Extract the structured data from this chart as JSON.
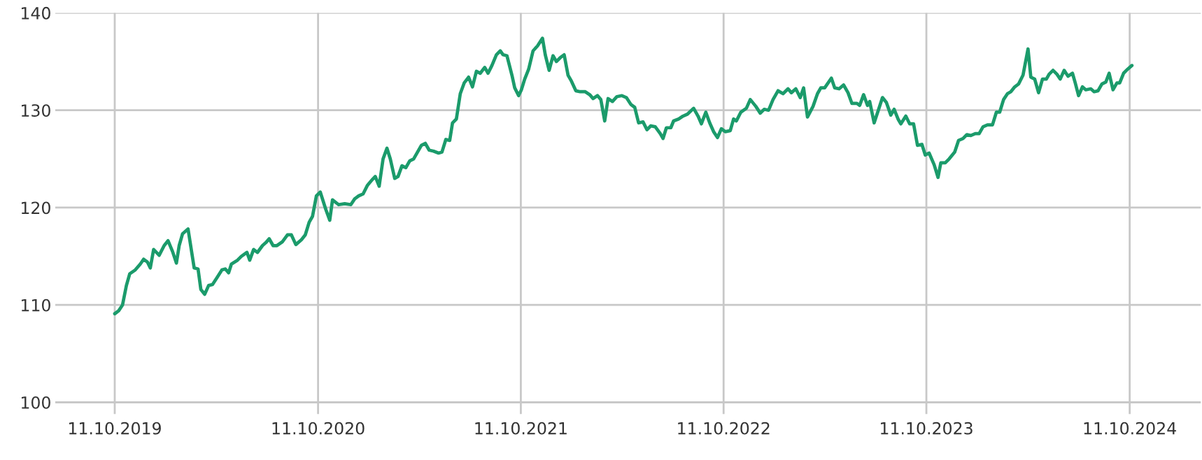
{
  "chart_data": {
    "type": "line",
    "x": [
      "2019-10-11",
      "2019-10-18",
      "2019-10-25",
      "2019-11-01",
      "2019-11-07",
      "2019-11-17",
      "2019-11-26",
      "2019-12-02",
      "2019-12-09",
      "2019-12-14",
      "2019-12-20",
      "2019-12-30",
      "2020-01-08",
      "2020-01-15",
      "2020-01-23",
      "2020-01-30",
      "2020-02-04",
      "2020-02-10",
      "2020-02-20",
      "2020-03-02",
      "2020-03-09",
      "2020-03-14",
      "2020-03-21",
      "2020-03-28",
      "2020-04-04",
      "2020-04-12",
      "2020-04-21",
      "2020-04-27",
      "2020-05-03",
      "2020-05-08",
      "2020-05-19",
      "2020-05-26",
      "2020-06-05",
      "2020-06-10",
      "2020-06-17",
      "2020-06-24",
      "2020-07-03",
      "2020-07-09",
      "2020-07-15",
      "2020-07-22",
      "2020-07-29",
      "2020-08-08",
      "2020-08-17",
      "2020-08-24",
      "2020-09-01",
      "2020-09-11",
      "2020-09-18",
      "2020-09-25",
      "2020-10-01",
      "2020-10-08",
      "2020-10-15",
      "2020-10-25",
      "2020-11-01",
      "2020-11-06",
      "2020-11-17",
      "2020-11-28",
      "2020-12-09",
      "2020-12-16",
      "2020-12-23",
      "2020-12-31",
      "2021-01-08",
      "2021-01-17",
      "2021-01-22",
      "2021-01-29",
      "2021-02-05",
      "2021-02-12",
      "2021-02-18",
      "2021-02-26",
      "2021-03-04",
      "2021-03-11",
      "2021-03-18",
      "2021-03-25",
      "2021-04-01",
      "2021-04-08",
      "2021-04-15",
      "2021-04-22",
      "2021-04-29",
      "2021-05-07",
      "2021-05-16",
      "2021-05-22",
      "2021-05-29",
      "2021-06-05",
      "2021-06-10",
      "2021-06-17",
      "2021-06-24",
      "2021-07-01",
      "2021-07-09",
      "2021-07-16",
      "2021-07-23",
      "2021-07-30",
      "2021-08-07",
      "2021-08-13",
      "2021-08-20",
      "2021-08-28",
      "2021-09-04",
      "2021-09-09",
      "2021-09-16",
      "2021-09-25",
      "2021-09-30",
      "2021-10-07",
      "2021-10-12",
      "2021-10-18",
      "2021-10-25",
      "2021-11-02",
      "2021-11-10",
      "2021-11-19",
      "2021-11-24",
      "2021-12-01",
      "2021-12-08",
      "2021-12-14",
      "2021-12-21",
      "2021-12-28",
      "2022-01-04",
      "2022-01-10",
      "2022-01-18",
      "2022-01-26",
      "2022-02-04",
      "2022-02-12",
      "2022-02-18",
      "2022-02-26",
      "2022-03-04",
      "2022-03-11",
      "2022-03-17",
      "2022-03-25",
      "2022-04-02",
      "2022-04-11",
      "2022-04-19",
      "2022-04-27",
      "2022-05-04",
      "2022-05-11",
      "2022-05-19",
      "2022-05-26",
      "2022-06-02",
      "2022-06-10",
      "2022-06-19",
      "2022-06-24",
      "2022-06-30",
      "2022-07-08",
      "2022-07-13",
      "2022-07-22",
      "2022-07-30",
      "2022-08-07",
      "2022-08-18",
      "2022-08-26",
      "2022-09-01",
      "2022-09-09",
      "2022-09-16",
      "2022-09-23",
      "2022-09-30",
      "2022-10-07",
      "2022-10-14",
      "2022-10-23",
      "2022-10-29",
      "2022-11-03",
      "2022-11-11",
      "2022-11-21",
      "2022-11-28",
      "2022-12-08",
      "2022-12-16",
      "2022-12-23",
      "2022-12-31",
      "2023-01-08",
      "2023-01-17",
      "2023-01-26",
      "2023-02-04",
      "2023-02-10",
      "2023-02-18",
      "2023-02-26",
      "2023-03-04",
      "2023-03-11",
      "2023-03-21",
      "2023-03-29",
      "2023-04-04",
      "2023-04-11",
      "2023-04-23",
      "2023-04-29",
      "2023-05-07",
      "2023-05-15",
      "2023-05-23",
      "2023-05-30",
      "2023-06-08",
      "2023-06-13",
      "2023-06-20",
      "2023-06-27",
      "2023-07-01",
      "2023-07-09",
      "2023-07-16",
      "2023-07-24",
      "2023-07-31",
      "2023-08-08",
      "2023-08-14",
      "2023-08-21",
      "2023-08-26",
      "2023-09-04",
      "2023-09-11",
      "2023-09-18",
      "2023-09-25",
      "2023-10-03",
      "2023-10-09",
      "2023-10-16",
      "2023-10-25",
      "2023-11-01",
      "2023-11-06",
      "2023-11-14",
      "2023-11-21",
      "2023-12-01",
      "2023-12-08",
      "2023-12-16",
      "2023-12-23",
      "2023-12-30",
      "2024-01-07",
      "2024-01-14",
      "2024-01-21",
      "2024-01-29",
      "2024-02-07",
      "2024-02-14",
      "2024-02-20",
      "2024-02-27",
      "2024-03-05",
      "2024-03-11",
      "2024-03-18",
      "2024-03-25",
      "2024-04-02",
      "2024-04-11",
      "2024-04-16",
      "2024-04-23",
      "2024-04-30",
      "2024-05-07",
      "2024-05-14",
      "2024-05-19",
      "2024-05-26",
      "2024-06-02",
      "2024-06-08",
      "2024-06-15",
      "2024-06-22",
      "2024-06-30",
      "2024-07-05",
      "2024-07-11",
      "2024-07-18",
      "2024-07-24",
      "2024-08-02",
      "2024-08-08",
      "2024-08-15",
      "2024-08-22",
      "2024-08-29",
      "2024-09-04",
      "2024-09-11",
      "2024-09-18",
      "2024-09-23",
      "2024-09-30",
      "2024-10-07",
      "2024-10-15"
    ],
    "series": [
      {
        "color": "#1b9b6b",
        "values": [
          109.1,
          109.4,
          110.0,
          112.0,
          113.2,
          113.6,
          114.2,
          114.7,
          114.4,
          113.8,
          115.7,
          115.1,
          116.1,
          116.6,
          115.5,
          114.3,
          116.1,
          117.3,
          117.8,
          113.8,
          113.7,
          111.6,
          111.1,
          112.0,
          112.1,
          112.8,
          113.6,
          113.7,
          113.3,
          114.2,
          114.6,
          115.0,
          115.4,
          114.6,
          115.7,
          115.4,
          116.1,
          116.4,
          116.8,
          116.1,
          116.1,
          116.5,
          117.2,
          117.2,
          116.2,
          116.7,
          117.2,
          118.5,
          119.1,
          121.2,
          121.6,
          119.8,
          118.7,
          120.8,
          120.3,
          120.4,
          120.3,
          120.9,
          121.2,
          121.4,
          122.3,
          122.9,
          123.2,
          122.2,
          125.0,
          126.1,
          125.0,
          123.0,
          123.2,
          124.3,
          124.1,
          124.8,
          125.0,
          125.7,
          126.4,
          126.6,
          125.9,
          125.8,
          125.6,
          125.7,
          127.0,
          126.9,
          128.7,
          129.1,
          131.7,
          132.8,
          133.4,
          132.4,
          134.0,
          133.8,
          134.4,
          133.8,
          134.6,
          135.7,
          136.1,
          135.7,
          135.6,
          133.6,
          132.3,
          131.5,
          132.1,
          133.2,
          134.2,
          136.1,
          136.6,
          137.4,
          135.7,
          134.1,
          135.6,
          135.0,
          135.4,
          135.7,
          133.6,
          133.0,
          132.0,
          131.9,
          131.9,
          131.6,
          131.2,
          131.5,
          131.1,
          128.9,
          131.2,
          130.9,
          131.4,
          131.5,
          131.3,
          130.6,
          130.3,
          128.7,
          128.8,
          128.0,
          128.4,
          128.3,
          127.6,
          127.1,
          128.2,
          128.2,
          128.9,
          129.1,
          129.4,
          129.6,
          130.2,
          129.4,
          128.6,
          129.8,
          128.7,
          127.8,
          127.2,
          128.1,
          127.8,
          127.9,
          129.1,
          128.9,
          129.8,
          130.2,
          131.1,
          130.4,
          129.7,
          130.1,
          130.0,
          131.1,
          132.0,
          131.7,
          132.2,
          131.8,
          132.2,
          131.3,
          132.3,
          129.3,
          130.4,
          131.7,
          132.3,
          132.3,
          133.3,
          132.3,
          132.2,
          132.6,
          131.8,
          130.7,
          130.7,
          130.5,
          131.6,
          130.5,
          130.9,
          128.7,
          129.9,
          131.3,
          130.8,
          129.5,
          130.1,
          129.1,
          128.6,
          129.4,
          128.6,
          128.6,
          126.4,
          126.5,
          125.4,
          125.6,
          124.4,
          123.1,
          124.6,
          124.6,
          125.0,
          125.7,
          126.9,
          127.1,
          127.5,
          127.4,
          127.6,
          127.6,
          128.3,
          128.5,
          128.5,
          129.8,
          129.8,
          131.1,
          131.7,
          131.9,
          132.4,
          132.7,
          133.6,
          136.3,
          133.4,
          133.2,
          131.8,
          133.2,
          133.2,
          133.7,
          134.1,
          133.7,
          133.2,
          134.1,
          133.5,
          133.8,
          132.8,
          131.5,
          132.4,
          132.1,
          132.2,
          131.9,
          132.0,
          132.7,
          132.9,
          133.8,
          132.1,
          132.8,
          132.8,
          133.8,
          134.2,
          134.6
        ]
      }
    ],
    "xlim": [
      "2019-06-26",
      "2025-02-16"
    ],
    "xticks": [
      {
        "value": "2019-10-11",
        "label": "11.10.2019"
      },
      {
        "value": "2020-10-11",
        "label": "11.10.2020"
      },
      {
        "value": "2021-10-11",
        "label": "11.10.2021"
      },
      {
        "value": "2022-10-11",
        "label": "11.10.2022"
      },
      {
        "value": "2023-10-11",
        "label": "11.10.2023"
      },
      {
        "value": "2024-10-11",
        "label": "11.10.2024"
      }
    ],
    "ylim": [
      98.8,
      140
    ],
    "yticks": [
      100,
      110,
      120,
      130,
      140
    ],
    "grid": true
  }
}
